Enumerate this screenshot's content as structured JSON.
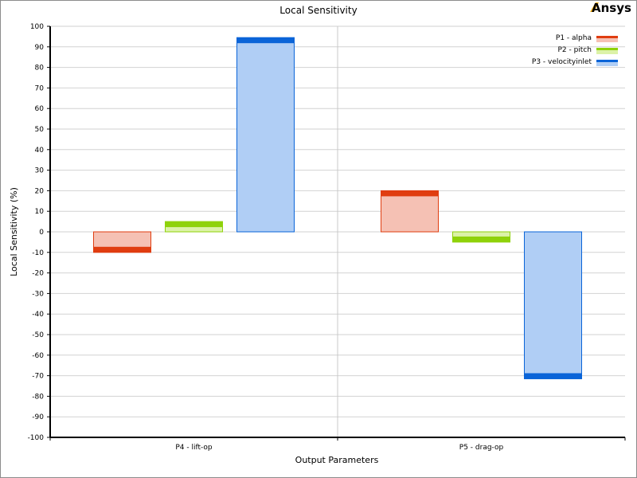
{
  "brand": {
    "logo_text": "Ansys",
    "logo_accent": "#ffb71b"
  },
  "chart_data": {
    "type": "bar",
    "title": "Local Sensitivity",
    "xlabel": "Output Parameters",
    "ylabel": "Local Sensitivity (%)",
    "ylim": [
      -100,
      100
    ],
    "yticks": [
      100,
      90,
      80,
      70,
      60,
      50,
      40,
      30,
      20,
      10,
      0,
      -10,
      -20,
      -30,
      -40,
      -50,
      -60,
      -70,
      -80,
      -90,
      -100
    ],
    "grid": true,
    "legend_position": "top-right",
    "categories": [
      "P4 - lift-op",
      "P5 - drag-op"
    ],
    "series": [
      {
        "name": "P1 - alpha",
        "values": [
          -10,
          20
        ],
        "fill": "#f5c1b4",
        "edge": "#e03d10"
      },
      {
        "name": "P2 - pitch",
        "values": [
          5,
          -5
        ],
        "fill": "#dcf2a8",
        "edge": "#8fd20a"
      },
      {
        "name": "P3 - velocityinlet",
        "values": [
          94.5,
          -71.5
        ],
        "fill": "#b0cef5",
        "edge": "#0a64d8"
      }
    ]
  }
}
